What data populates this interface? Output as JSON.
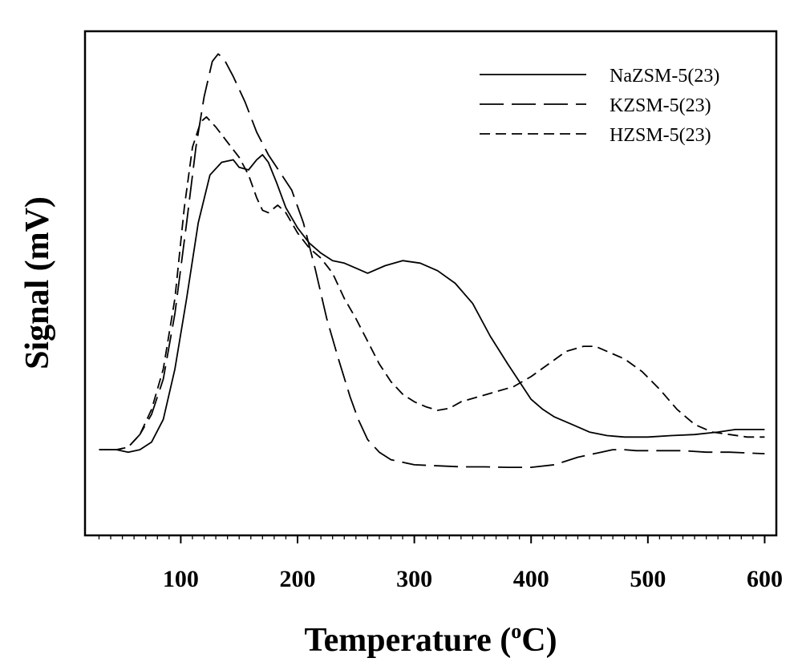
{
  "chart_data": {
    "type": "line",
    "title": "",
    "xlabel": "Temperature (",
    "xlabel_sup": "o",
    "xlabel_unit": "C)",
    "ylabel": "Signal (mV)",
    "xlim": [
      18,
      610
    ],
    "ylim": [
      0,
      100
    ],
    "x_ticks": [
      100,
      200,
      300,
      400,
      500,
      600
    ],
    "x_tick_labels": [
      "100",
      "200",
      "300",
      "400",
      "500",
      "600"
    ],
    "y_ticks_shown": false,
    "legend_position": "top-right",
    "series": [
      {
        "name": "NaZSM-5(23)",
        "dash": "solid",
        "points": [
          [
            30,
            17
          ],
          [
            45,
            17
          ],
          [
            55,
            16.5
          ],
          [
            65,
            17
          ],
          [
            75,
            18.5
          ],
          [
            85,
            23
          ],
          [
            95,
            33
          ],
          [
            105,
            47
          ],
          [
            115,
            62
          ],
          [
            125,
            71.5
          ],
          [
            135,
            74
          ],
          [
            145,
            74.5
          ],
          [
            150,
            73
          ],
          [
            158,
            72.5
          ],
          [
            165,
            74.5
          ],
          [
            170,
            75.5
          ],
          [
            175,
            74
          ],
          [
            182,
            70
          ],
          [
            190,
            65
          ],
          [
            200,
            61
          ],
          [
            210,
            58
          ],
          [
            220,
            56
          ],
          [
            230,
            54.5
          ],
          [
            240,
            54
          ],
          [
            250,
            53
          ],
          [
            260,
            52
          ],
          [
            275,
            53.5
          ],
          [
            290,
            54.5
          ],
          [
            305,
            54
          ],
          [
            320,
            52.5
          ],
          [
            335,
            50
          ],
          [
            350,
            46
          ],
          [
            365,
            39.5
          ],
          [
            380,
            34
          ],
          [
            390,
            30.5
          ],
          [
            400,
            27
          ],
          [
            410,
            25
          ],
          [
            420,
            23.5
          ],
          [
            435,
            22
          ],
          [
            450,
            20.5
          ],
          [
            465,
            19.8
          ],
          [
            480,
            19.5
          ],
          [
            500,
            19.5
          ],
          [
            520,
            19.8
          ],
          [
            540,
            20
          ],
          [
            560,
            20.5
          ],
          [
            575,
            21
          ],
          [
            590,
            21
          ],
          [
            600,
            21
          ]
        ]
      },
      {
        "name": "KZSM-5(23)",
        "dash": "long",
        "points": [
          [
            30,
            17
          ],
          [
            45,
            17
          ],
          [
            55,
            17.5
          ],
          [
            65,
            20
          ],
          [
            75,
            24
          ],
          [
            85,
            31
          ],
          [
            95,
            44
          ],
          [
            105,
            62
          ],
          [
            113,
            77
          ],
          [
            120,
            87
          ],
          [
            127,
            94
          ],
          [
            132,
            95.5
          ],
          [
            137,
            94.5
          ],
          [
            145,
            91
          ],
          [
            155,
            86
          ],
          [
            165,
            80
          ],
          [
            175,
            75.5
          ],
          [
            185,
            72
          ],
          [
            195,
            68.5
          ],
          [
            205,
            62
          ],
          [
            215,
            53
          ],
          [
            225,
            43
          ],
          [
            235,
            35
          ],
          [
            245,
            27.5
          ],
          [
            252,
            23
          ],
          [
            260,
            19
          ],
          [
            270,
            16.5
          ],
          [
            280,
            15
          ],
          [
            290,
            14.5
          ],
          [
            300,
            14
          ],
          [
            320,
            13.8
          ],
          [
            340,
            13.6
          ],
          [
            360,
            13.6
          ],
          [
            380,
            13.5
          ],
          [
            400,
            13.5
          ],
          [
            420,
            14
          ],
          [
            440,
            15.5
          ],
          [
            460,
            16.5
          ],
          [
            470,
            17
          ],
          [
            480,
            17
          ],
          [
            490,
            16.8
          ],
          [
            510,
            16.8
          ],
          [
            530,
            16.8
          ],
          [
            550,
            16.5
          ],
          [
            570,
            16.5
          ],
          [
            590,
            16.3
          ],
          [
            600,
            16.2
          ]
        ]
      },
      {
        "name": "HZSM-5(23)",
        "dash": "short",
        "points": [
          [
            30,
            17
          ],
          [
            45,
            17
          ],
          [
            55,
            17.5
          ],
          [
            65,
            20
          ],
          [
            75,
            25
          ],
          [
            85,
            33
          ],
          [
            95,
            47
          ],
          [
            103,
            65
          ],
          [
            110,
            77
          ],
          [
            117,
            82
          ],
          [
            122,
            83
          ],
          [
            130,
            81
          ],
          [
            140,
            78
          ],
          [
            150,
            75
          ],
          [
            158,
            71.5
          ],
          [
            165,
            67
          ],
          [
            170,
            64.5
          ],
          [
            175,
            64
          ],
          [
            183,
            65.5
          ],
          [
            190,
            64
          ],
          [
            200,
            60
          ],
          [
            210,
            57
          ],
          [
            220,
            55
          ],
          [
            230,
            52
          ],
          [
            240,
            47
          ],
          [
            250,
            43
          ],
          [
            260,
            38.5
          ],
          [
            270,
            34
          ],
          [
            280,
            30.5
          ],
          [
            290,
            28
          ],
          [
            300,
            26.5
          ],
          [
            310,
            25.5
          ],
          [
            320,
            24.8
          ],
          [
            330,
            25.2
          ],
          [
            340,
            26.5
          ],
          [
            355,
            27.5
          ],
          [
            370,
            28.5
          ],
          [
            385,
            29.5
          ],
          [
            400,
            31.5
          ],
          [
            415,
            34
          ],
          [
            430,
            36.5
          ],
          [
            445,
            37.5
          ],
          [
            455,
            37.5
          ],
          [
            465,
            36.5
          ],
          [
            480,
            35
          ],
          [
            495,
            32.5
          ],
          [
            510,
            29
          ],
          [
            525,
            25
          ],
          [
            540,
            22
          ],
          [
            555,
            20.5
          ],
          [
            570,
            20
          ],
          [
            585,
            19.5
          ],
          [
            600,
            19.5
          ]
        ]
      }
    ]
  }
}
